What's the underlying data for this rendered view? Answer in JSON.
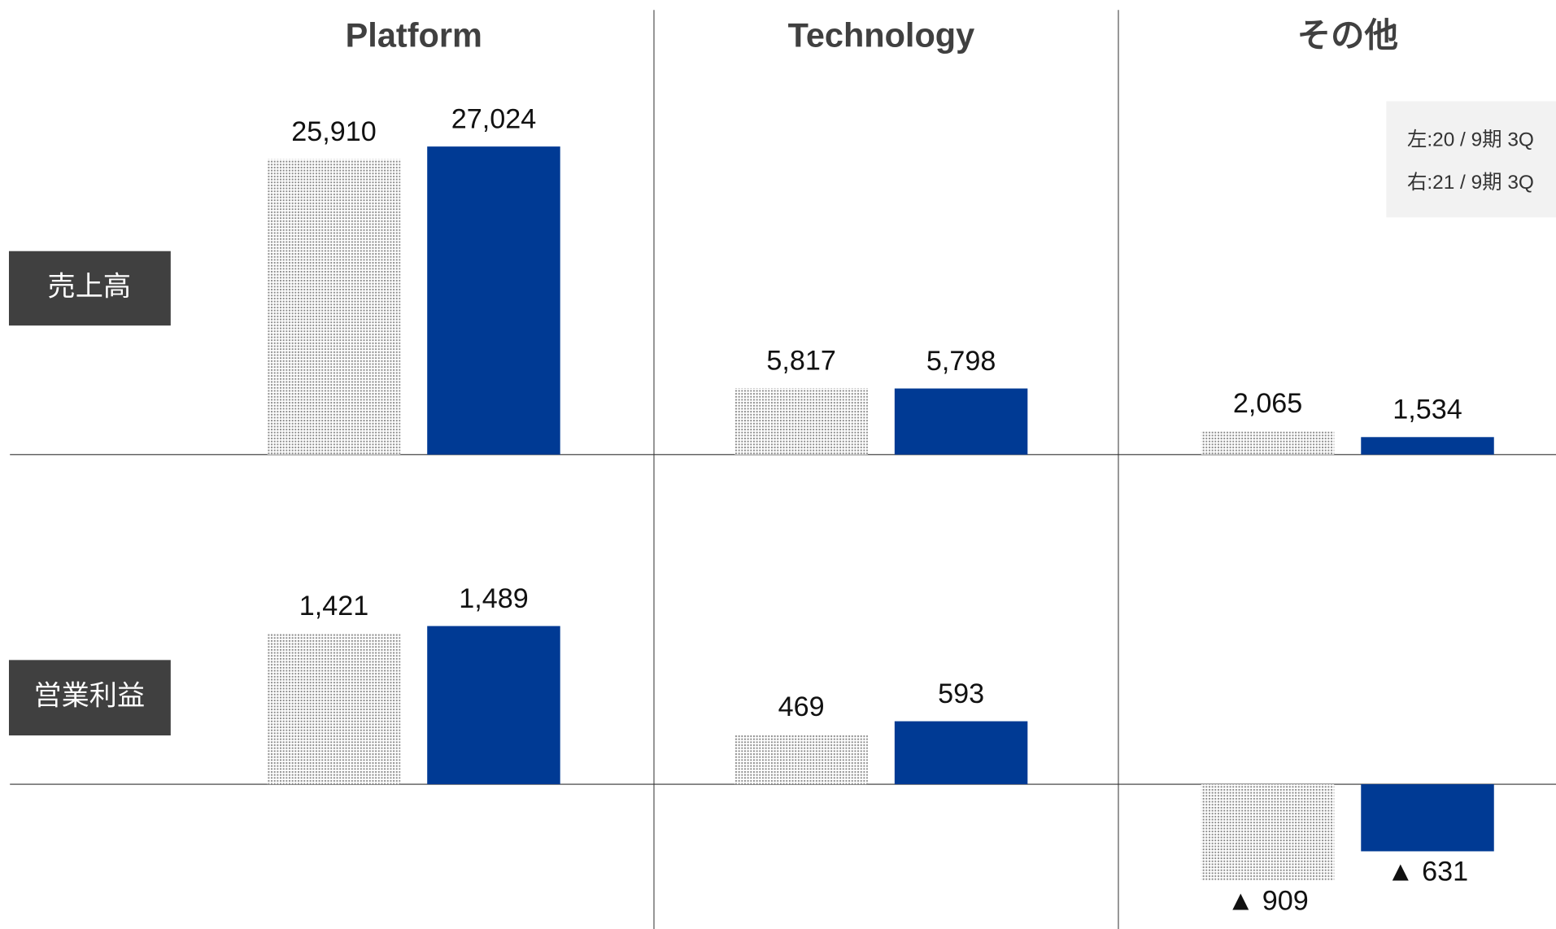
{
  "chart_data": [
    {
      "type": "bar",
      "title": "売上高",
      "categories": [
        "Platform",
        "Technology",
        "その他"
      ],
      "ylim": [
        0,
        35000
      ],
      "series": [
        {
          "name": "左:20 / 9期 3Q",
          "color": "#8a8a8a",
          "pattern": "dots",
          "values": [
            25910,
            5817,
            2065
          ],
          "value_labels": [
            "25,910",
            "5,817",
            "2,065"
          ]
        },
        {
          "name": "右:21 / 9期 3Q",
          "color": "#003a94",
          "values": [
            27024,
            5798,
            1534
          ],
          "value_labels": [
            "27,024",
            "5,798",
            "1,534"
          ]
        }
      ]
    },
    {
      "type": "bar",
      "title": "営業利益",
      "ylim": [
        -1250,
        3000
      ],
      "series": [
        {
          "color": "#8a8a8a",
          "pattern": "dots",
          "values": [
            1421,
            469,
            -909
          ],
          "value_labels": [
            "1,421",
            "469",
            "▲ 909"
          ]
        },
        {
          "color": "#003a94",
          "values": [
            1489,
            593,
            -631
          ],
          "value_labels": [
            "1,489",
            "593",
            "▲ 631"
          ]
        }
      ]
    }
  ]
}
